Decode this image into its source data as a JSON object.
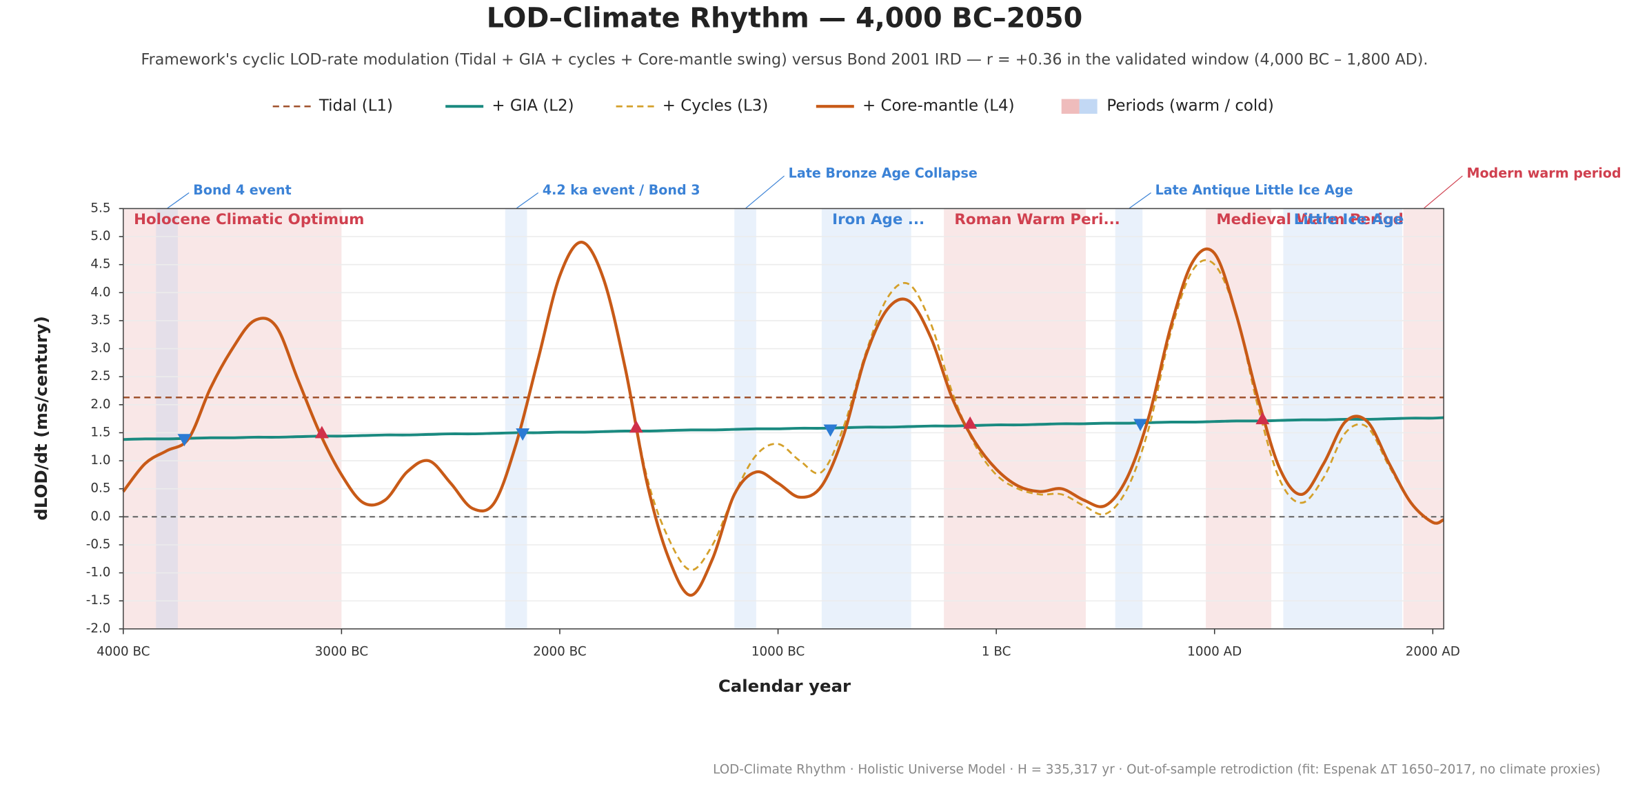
{
  "chart_data": {
    "type": "line",
    "title": "LOD–Climate Rhythm — 4,000 BC–2050",
    "subtitle": "Framework's cyclic LOD-rate modulation (Tidal + GIA + cycles + Core-mantle swing) versus Bond 2001 IRD — r = +0.36 in the validated window (4,000 BC – 1,800 AD).",
    "x_label": "Calendar year",
    "y_label": "dLOD/dt (ms/century)",
    "note": "LOD-Climate Rhythm · Holistic Universe Model · H = 335,317 yr · Out-of-sample retrodiction (fit: Espenak ΔT 1650–2017, no climate proxies)",
    "xlim": [
      -4000,
      2050
    ],
    "xticks": [
      {
        "value": -4000,
        "label": "4000 BC"
      },
      {
        "value": -3000,
        "label": "3000 BC"
      },
      {
        "value": -2000,
        "label": "2000 BC"
      },
      {
        "value": -1000,
        "label": "1000 BC"
      },
      {
        "value": 0,
        "label": "1 BC"
      },
      {
        "value": 1000,
        "label": "1000 AD"
      },
      {
        "value": 2000,
        "label": "2000 AD"
      }
    ],
    "ylim": [
      -2,
      5.5
    ],
    "yticks": [
      5.5,
      {
        "value": 5,
        "label": "5.0"
      },
      4.5,
      {
        "value": 4,
        "label": "4.0"
      },
      3.5,
      {
        "value": 3,
        "label": "3.0"
      },
      2.5,
      {
        "value": 2,
        "label": "2.0"
      },
      1.5,
      {
        "value": 1,
        "label": "1.0"
      },
      0.5,
      {
        "value": 0,
        "label": "0.0"
      },
      -0.5,
      {
        "value": -1,
        "label": "-1.0"
      },
      -1.5,
      {
        "value": -2,
        "label": "-2.0"
      }
    ],
    "grid": true,
    "x": [
      -4000,
      -3900,
      -3800,
      -3700,
      -3600,
      -3500,
      -3400,
      -3300,
      -3200,
      -3100,
      -3000,
      -2900,
      -2800,
      -2700,
      -2600,
      -2500,
      -2400,
      -2300,
      -2200,
      -2100,
      -2000,
      -1900,
      -1800,
      -1700,
      -1600,
      -1500,
      -1400,
      -1300,
      -1200,
      -1100,
      -1000,
      -900,
      -800,
      -700,
      -600,
      -500,
      -400,
      -300,
      -200,
      -100,
      0,
      100,
      200,
      300,
      400,
      500,
      600,
      700,
      800,
      900,
      1000,
      1100,
      1200,
      1300,
      1400,
      1500,
      1600,
      1700,
      1800,
      1900,
      2000,
      2050
    ],
    "series": [
      {
        "name": "Tidal (L1)",
        "color": "#a0522d",
        "dashed": true,
        "width": 1.6,
        "values": [
          2.13,
          2.13,
          2.13,
          2.13,
          2.13,
          2.13,
          2.13,
          2.13,
          2.13,
          2.13,
          2.13,
          2.13,
          2.13,
          2.13,
          2.13,
          2.13,
          2.13,
          2.13,
          2.13,
          2.13,
          2.13,
          2.13,
          2.13,
          2.13,
          2.13,
          2.13,
          2.13,
          2.13,
          2.13,
          2.13,
          2.13,
          2.13,
          2.13,
          2.13,
          2.13,
          2.13,
          2.13,
          2.13,
          2.13,
          2.13,
          2.13,
          2.13,
          2.13,
          2.13,
          2.13,
          2.13,
          2.13,
          2.13,
          2.13,
          2.13,
          2.13,
          2.13,
          2.13,
          2.13,
          2.13,
          2.13,
          2.13,
          2.13,
          2.13,
          2.13,
          2.13,
          2.13
        ]
      },
      {
        "name": "+ GIA (L2)",
        "color": "#1a8a80",
        "dashed": false,
        "width": 2.6,
        "values": [
          1.38,
          1.39,
          1.39,
          1.4,
          1.41,
          1.41,
          1.42,
          1.42,
          1.43,
          1.44,
          1.44,
          1.45,
          1.46,
          1.46,
          1.47,
          1.48,
          1.48,
          1.49,
          1.5,
          1.5,
          1.51,
          1.51,
          1.52,
          1.53,
          1.53,
          1.54,
          1.55,
          1.55,
          1.56,
          1.57,
          1.57,
          1.58,
          1.58,
          1.59,
          1.6,
          1.6,
          1.61,
          1.62,
          1.62,
          1.63,
          1.64,
          1.64,
          1.65,
          1.66,
          1.66,
          1.67,
          1.67,
          1.68,
          1.69,
          1.69,
          1.7,
          1.71,
          1.71,
          1.72,
          1.73,
          1.73,
          1.74,
          1.74,
          1.75,
          1.76,
          1.76,
          1.77
        ]
      },
      {
        "name": "+ Cycles (L3)",
        "color": "#d4a02a",
        "dashed": true,
        "width": 1.8,
        "values": [
          0.45,
          0.95,
          1.18,
          1.4,
          2.3,
          3.0,
          3.5,
          3.4,
          2.45,
          1.5,
          0.75,
          0.25,
          0.3,
          0.8,
          1.0,
          0.6,
          0.15,
          0.25,
          1.3,
          2.8,
          4.3,
          4.9,
          4.25,
          2.65,
          0.7,
          -0.4,
          -0.95,
          -0.5,
          0.4,
          1.1,
          1.3,
          1.0,
          0.8,
          1.6,
          2.9,
          3.9,
          4.15,
          3.45,
          2.2,
          1.3,
          0.75,
          0.5,
          0.4,
          0.4,
          0.2,
          0.05,
          0.5,
          1.6,
          3.3,
          4.4,
          4.5,
          3.6,
          1.95,
          0.65,
          0.25,
          0.7,
          1.5,
          1.6,
          0.9,
          0.25,
          -0.1,
          -0.05
        ]
      },
      {
        "name": "+ Core-mantle (L4)",
        "color": "#c85a17",
        "dashed": false,
        "width": 2.8,
        "values": [
          0.45,
          0.95,
          1.18,
          1.4,
          2.3,
          3.0,
          3.5,
          3.4,
          2.45,
          1.5,
          0.75,
          0.25,
          0.3,
          0.8,
          1.0,
          0.6,
          0.15,
          0.25,
          1.3,
          2.8,
          4.3,
          4.9,
          4.25,
          2.65,
          0.6,
          -0.75,
          -1.4,
          -0.75,
          0.4,
          0.8,
          0.6,
          0.35,
          0.55,
          1.45,
          2.85,
          3.7,
          3.85,
          3.2,
          2.1,
          1.35,
          0.85,
          0.55,
          0.45,
          0.5,
          0.3,
          0.2,
          0.7,
          1.8,
          3.4,
          4.55,
          4.7,
          3.6,
          2.1,
          0.85,
          0.4,
          0.95,
          1.7,
          1.7,
          0.95,
          0.25,
          -0.1,
          -0.05
        ]
      }
    ],
    "markers": [
      {
        "x": -3720,
        "y": 1.38,
        "color": "#2b7bd4",
        "direction": "down"
      },
      {
        "x": -3090,
        "y": 1.5,
        "color": "#d0304a",
        "direction": "up"
      },
      {
        "x": -2170,
        "y": 1.48,
        "color": "#2b7bd4",
        "direction": "down"
      },
      {
        "x": -1650,
        "y": 1.6,
        "color": "#d0304a",
        "direction": "up"
      },
      {
        "x": -760,
        "y": 1.55,
        "color": "#2b7bd4",
        "direction": "down"
      },
      {
        "x": -120,
        "y": 1.67,
        "color": "#d0304a",
        "direction": "up"
      },
      {
        "x": 660,
        "y": 1.65,
        "color": "#2b7bd4",
        "direction": "down"
      },
      {
        "x": 1220,
        "y": 1.75,
        "color": "#d0304a",
        "direction": "up"
      }
    ],
    "periods_legend": "Periods (warm / cold)",
    "warm_color": "#e8a0a0",
    "cold_color": "#a8c8f0",
    "warm_text_color": "#d0404f",
    "cold_text_color": "#3b82d6",
    "periods": [
      {
        "label": "Holocene Climatic Optimum",
        "start": -4000,
        "end": -3000,
        "kind": "warm"
      },
      {
        "label": "Bond 4 event",
        "start": -3850,
        "end": -3750,
        "kind": "cold"
      },
      {
        "label": "4.2 ka event / Bond 3",
        "start": -2250,
        "end": -2150,
        "kind": "cold"
      },
      {
        "label": "Late Bronze Age Collapse",
        "start": -1200,
        "end": -1100,
        "kind": "cold"
      },
      {
        "label": "Iron Age ...",
        "start": -800,
        "end": -390,
        "kind": "cold"
      },
      {
        "label": "Roman Warm Peri...",
        "start": -240,
        "end": 410,
        "kind": "warm"
      },
      {
        "label": "Late Antique Little Ice Age",
        "start": 545,
        "end": 670,
        "kind": "cold"
      },
      {
        "label": "Medieval Warm Period",
        "start": 960,
        "end": 1260,
        "kind": "warm"
      },
      {
        "label": "Little Ice Age",
        "start": 1315,
        "end": 1860,
        "kind": "cold"
      },
      {
        "label": "Modern warm period",
        "start": 1865,
        "end": 2050,
        "kind": "warm"
      }
    ]
  }
}
